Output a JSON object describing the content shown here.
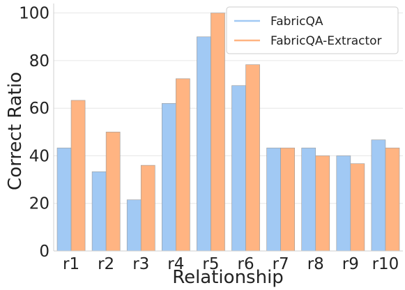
{
  "chart_data": {
    "type": "bar",
    "title": "",
    "xlabel": "Relationship",
    "ylabel": "Correct Ratio",
    "categories": [
      "r1",
      "r2",
      "r3",
      "r4",
      "r5",
      "r6",
      "r7",
      "r8",
      "r9",
      "r10"
    ],
    "series": [
      {
        "name": "FabricQA",
        "color": "#a1c9f4",
        "values": [
          43.3,
          33.3,
          21.5,
          62,
          90,
          69.5,
          43.3,
          43.3,
          40,
          46.7
        ]
      },
      {
        "name": "FabricQA-Extractor",
        "color": "#ffb482",
        "values": [
          63.3,
          50,
          36,
          72.4,
          100,
          78.3,
          43.3,
          40,
          36.7,
          43.3
        ]
      }
    ],
    "ylim": [
      0,
      104
    ],
    "yticks": [
      0,
      20,
      40,
      60,
      80,
      100
    ],
    "grid": "horizontal",
    "legend_position": "top-right"
  }
}
